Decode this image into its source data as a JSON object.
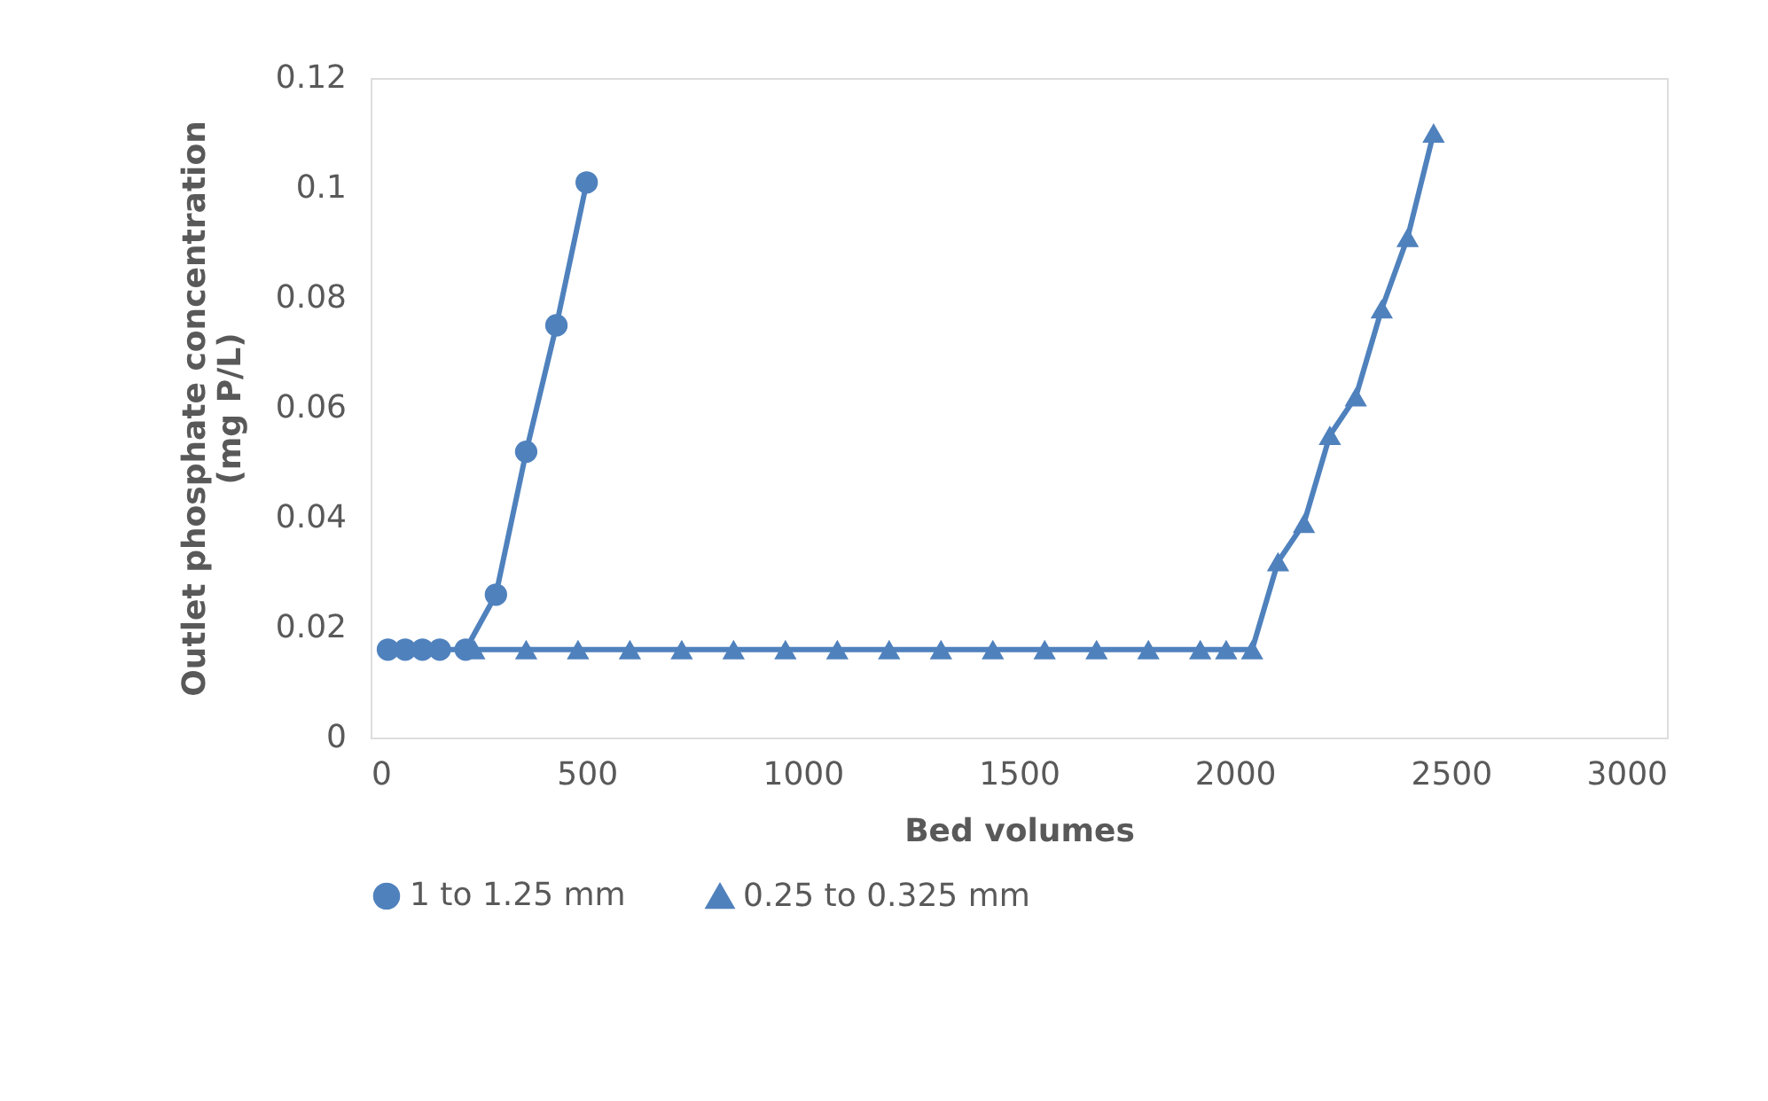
{
  "chart_data": {
    "type": "line",
    "xlabel": "Bed volumes",
    "ylabel": "Outlet phosphate concentration (mg P/L)",
    "xlim": [
      0,
      3000
    ],
    "xticks": [
      0,
      500,
      1000,
      1500,
      2000,
      2500,
      3000
    ],
    "ylim": [
      0,
      0.12
    ],
    "yticks": [
      0,
      0.02,
      0.04,
      0.06,
      0.08,
      0.1,
      0.12
    ],
    "grid": false,
    "legend": "bottom",
    "series": [
      {
        "name": "1 to 1.25 mm",
        "color": "#4f81bd",
        "marker": "circle",
        "x": [
          40,
          80,
          120,
          160,
          220,
          290,
          360,
          430,
          500
        ],
        "values": [
          0.016,
          0.016,
          0.016,
          0.016,
          0.016,
          0.026,
          0.052,
          0.075,
          0.101
        ]
      },
      {
        "name": "0.25 to 0.325 mm",
        "color": "#4f81bd",
        "marker": "triangle",
        "x": [
          240,
          360,
          480,
          600,
          720,
          840,
          960,
          1080,
          1200,
          1320,
          1440,
          1560,
          1680,
          1800,
          1920,
          1980,
          2040,
          2100,
          2160,
          2220,
          2280,
          2340,
          2400,
          2460
        ],
        "values": [
          0.016,
          0.016,
          0.016,
          0.016,
          0.016,
          0.016,
          0.016,
          0.016,
          0.016,
          0.016,
          0.016,
          0.016,
          0.016,
          0.016,
          0.016,
          0.016,
          0.016,
          0.032,
          0.039,
          0.055,
          0.062,
          0.078,
          0.091,
          0.11
        ]
      }
    ]
  }
}
